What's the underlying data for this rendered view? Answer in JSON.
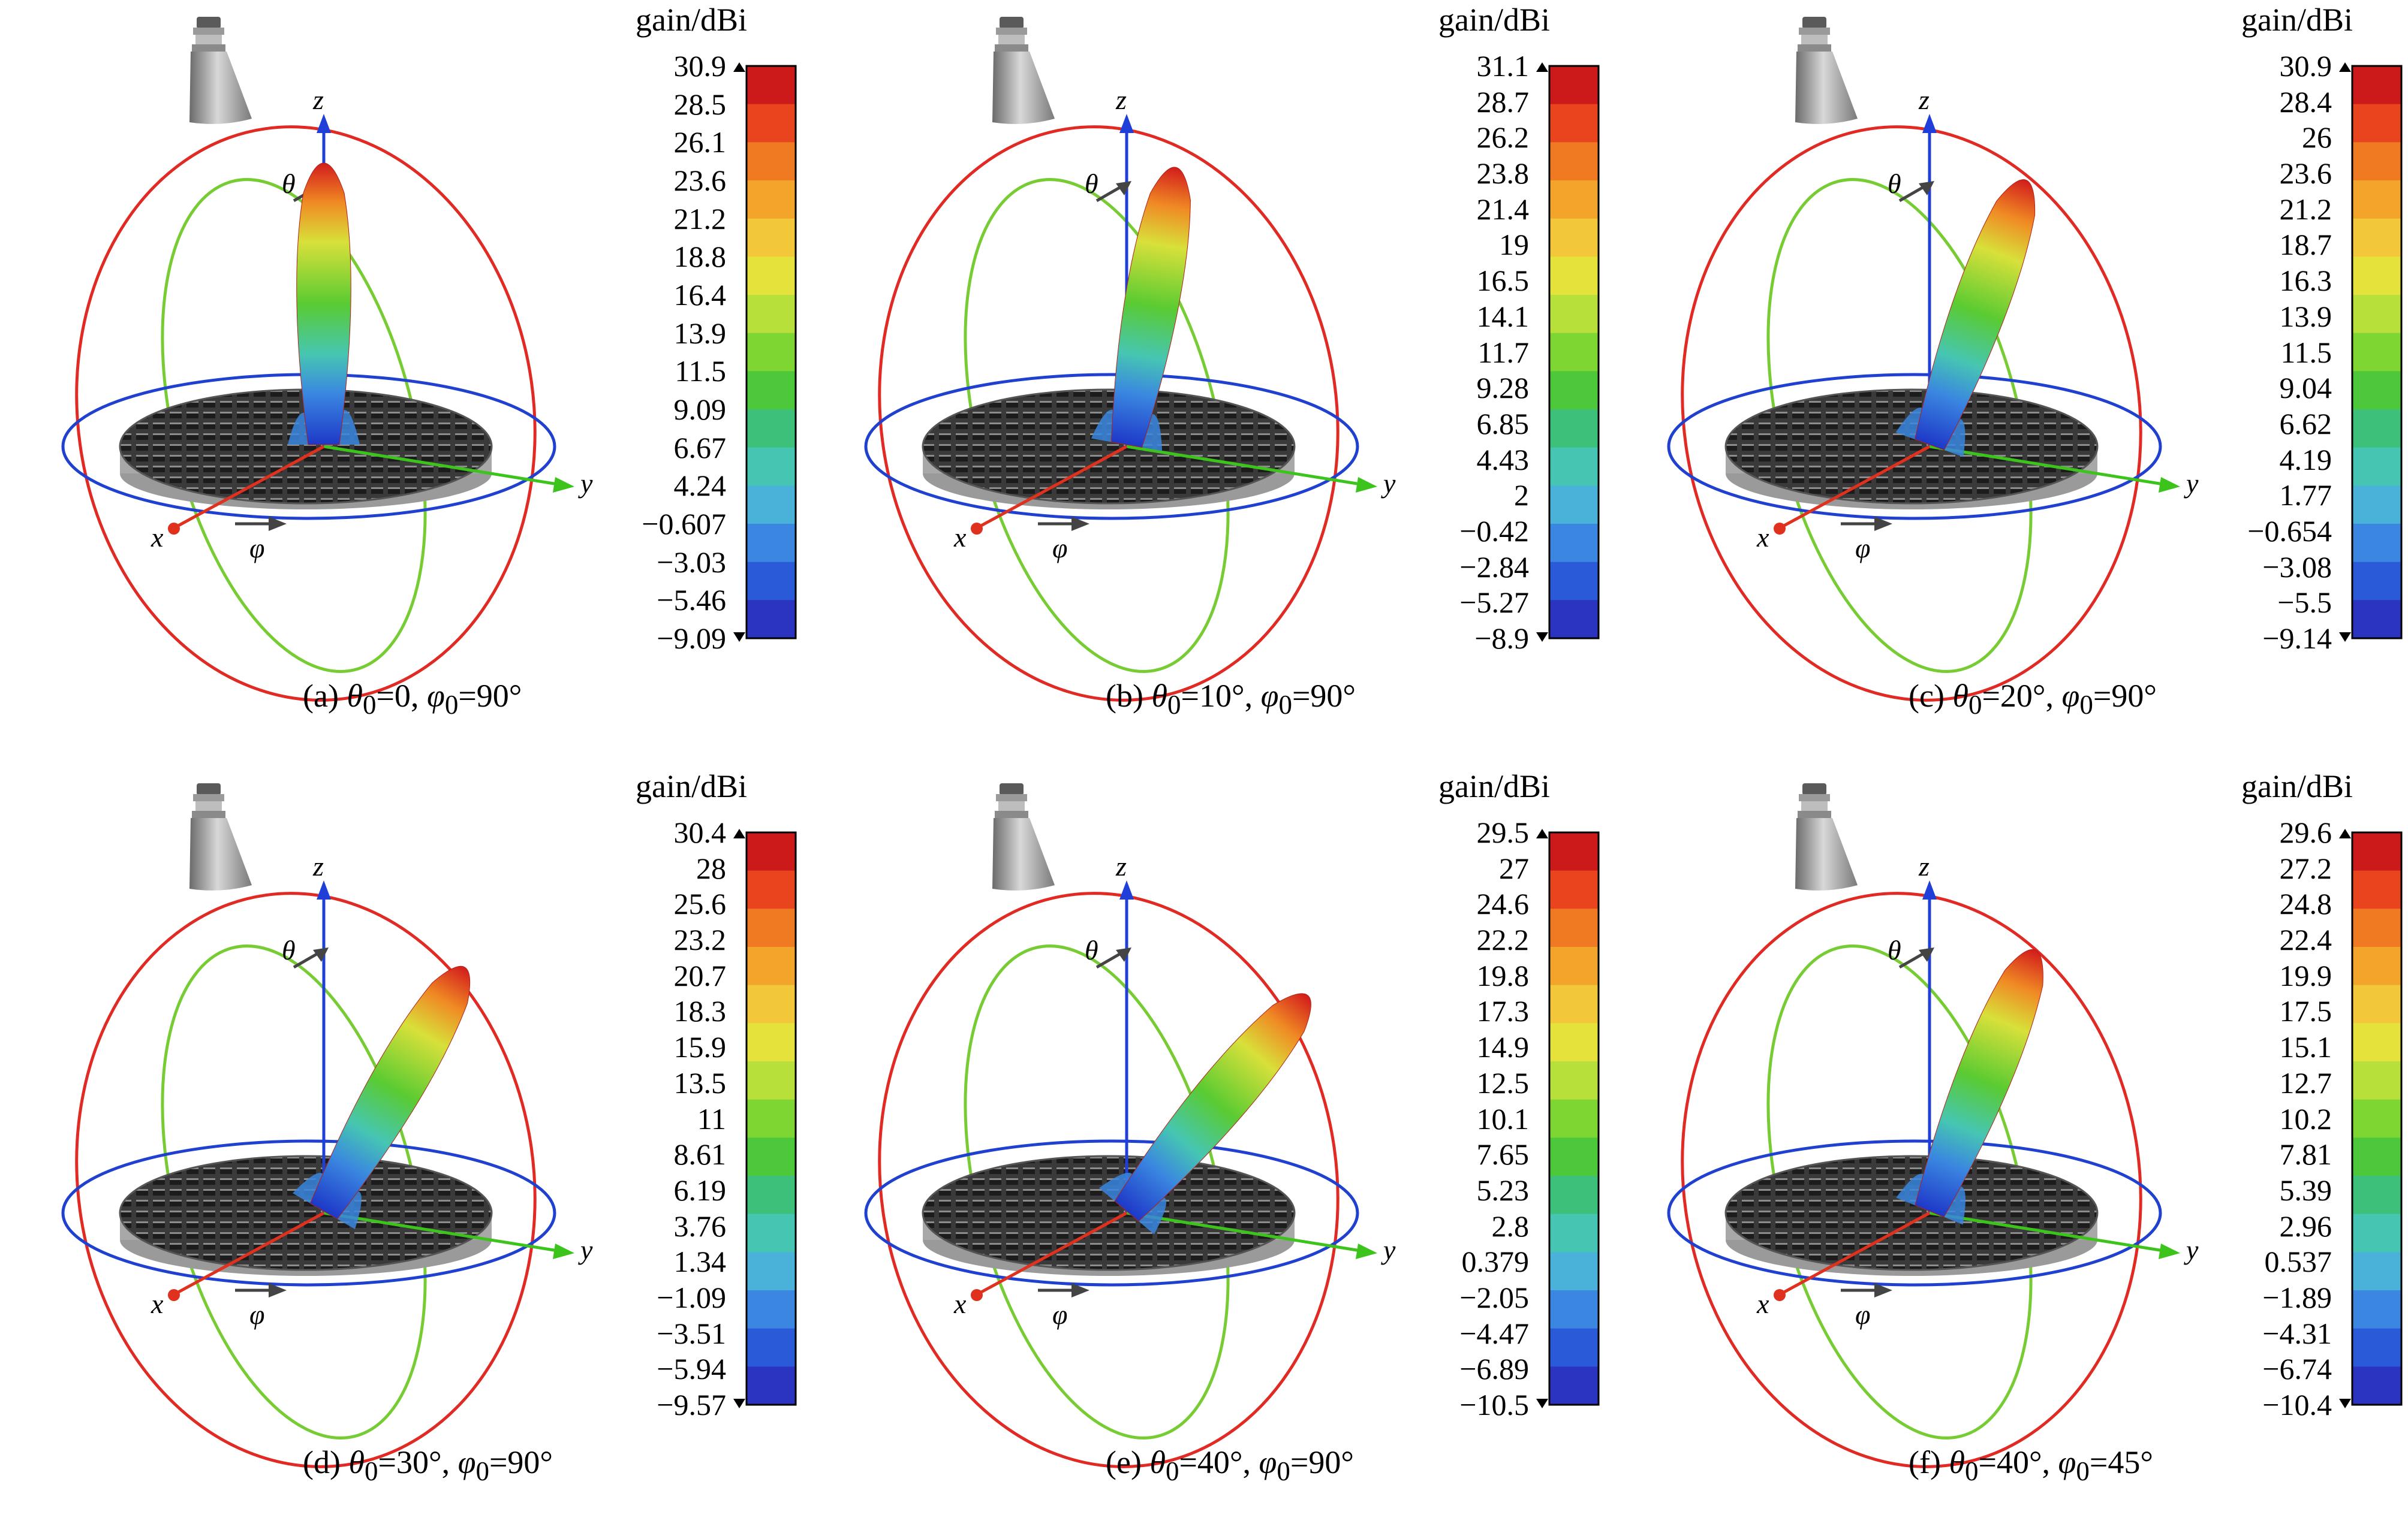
{
  "figure": {
    "unit_label": "gain/dBi",
    "axis_letters": {
      "x": "x",
      "y": "y",
      "z": "z",
      "theta": "θ",
      "phi": "φ"
    },
    "colors": {
      "x_axis": "#e0301e",
      "y_axis": "#3cc41c",
      "z_axis": "#1f3fd8",
      "theta_ring": "#e02a23",
      "phi_ring": "#2040d0",
      "elevation_ring": "#77cc33",
      "array_dark": "#2b2b2b",
      "array_light": "#b9b9b9"
    },
    "colormap": [
      "#cc1a1a",
      "#e8441e",
      "#f07a22",
      "#f2a52a",
      "#f2c83a",
      "#e6e23c",
      "#b8e03a",
      "#7ed632",
      "#4dc83a",
      "#3cc07a",
      "#46c6b2",
      "#4ab2d8",
      "#3a86e0",
      "#2a5ad8",
      "#2a34c0"
    ]
  },
  "panels": [
    {
      "caption_prefix": "(a)",
      "theta0": "=0",
      "phi0": "=90°",
      "beam_theta": 0,
      "beam_phi": 90,
      "ticks": [
        "30.9",
        "28.5",
        "26.1",
        "23.6",
        "21.2",
        "18.8",
        "16.4",
        "13.9",
        "11.5",
        "9.09",
        "6.67",
        "4.24",
        "−0.607",
        "−3.03",
        "−5.46",
        "−9.09"
      ]
    },
    {
      "caption_prefix": "(b)",
      "theta0": "=10°",
      "phi0": "=90°",
      "beam_theta": 10,
      "beam_phi": 90,
      "ticks": [
        "31.1",
        "28.7",
        "26.2",
        "23.8",
        "21.4",
        "19",
        "16.5",
        "14.1",
        "11.7",
        "9.28",
        "6.85",
        "4.43",
        "2",
        "−0.42",
        "−2.84",
        "−5.27",
        "−8.9"
      ]
    },
    {
      "caption_prefix": "(c)",
      "theta0": "=20°",
      "phi0": "=90°",
      "beam_theta": 20,
      "beam_phi": 90,
      "ticks": [
        "30.9",
        "28.4",
        "26",
        "23.6",
        "21.2",
        "18.7",
        "16.3",
        "13.9",
        "11.5",
        "9.04",
        "6.62",
        "4.19",
        "1.77",
        "−0.654",
        "−3.08",
        "−5.5",
        "−9.14"
      ]
    },
    {
      "caption_prefix": "(d)",
      "theta0": "=30°",
      "phi0": "=90°",
      "beam_theta": 30,
      "beam_phi": 90,
      "ticks": [
        "30.4",
        "28",
        "25.6",
        "23.2",
        "20.7",
        "18.3",
        "15.9",
        "13.5",
        "11",
        "8.61",
        "6.19",
        "3.76",
        "1.34",
        "−1.09",
        "−3.51",
        "−5.94",
        "−9.57"
      ]
    },
    {
      "caption_prefix": "(e)",
      "theta0": "=40°",
      "phi0": "=90°",
      "beam_theta": 40,
      "beam_phi": 90,
      "ticks": [
        "29.5",
        "27",
        "24.6",
        "22.2",
        "19.8",
        "17.3",
        "14.9",
        "12.5",
        "10.1",
        "7.65",
        "5.23",
        "2.8",
        "0.379",
        "−2.05",
        "−4.47",
        "−6.89",
        "−10.5"
      ]
    },
    {
      "caption_prefix": "(f)",
      "theta0": "=40°",
      "phi0": "=45°",
      "beam_theta": 40,
      "beam_phi": 45,
      "ticks": [
        "29.6",
        "27.2",
        "24.8",
        "22.4",
        "19.9",
        "17.5",
        "15.1",
        "12.7",
        "10.2",
        "7.81",
        "5.39",
        "2.96",
        "0.537",
        "−1.89",
        "−4.31",
        "−6.74",
        "−10.4"
      ]
    }
  ]
}
